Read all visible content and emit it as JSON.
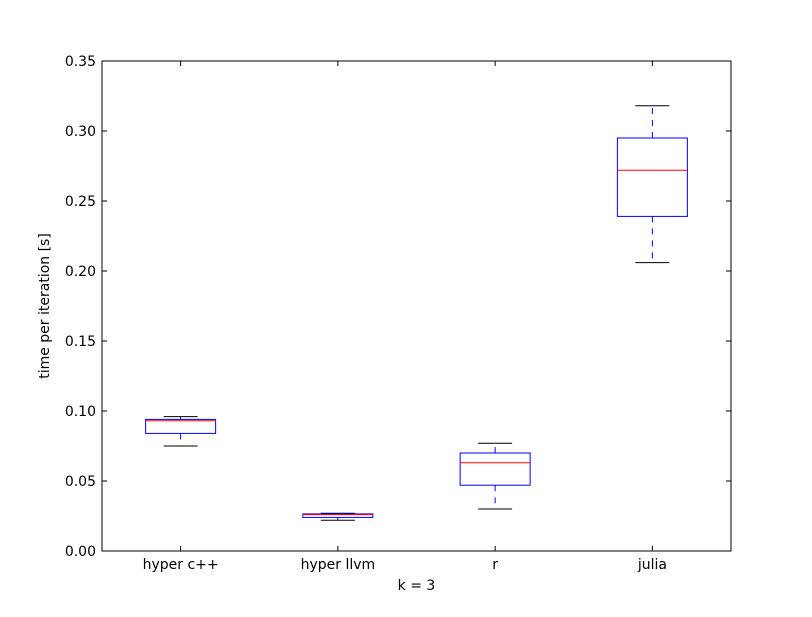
{
  "chart_data": {
    "type": "box",
    "xlabel": "k = 3",
    "ylabel": "time per iteration [s]",
    "ylim": [
      0.0,
      0.35
    ],
    "yticks": [
      0.0,
      0.05,
      0.1,
      0.15,
      0.2,
      0.25,
      0.3,
      0.35
    ],
    "ytick_labels": [
      "0.00",
      "0.05",
      "0.10",
      "0.15",
      "0.20",
      "0.25",
      "0.30",
      "0.35"
    ],
    "categories": [
      "hyper c++",
      "hyper llvm",
      "r",
      "julia"
    ],
    "boxes": [
      {
        "label": "hyper c++",
        "whisker_low": 0.075,
        "q1": 0.084,
        "median": 0.093,
        "q3": 0.094,
        "whisker_high": 0.096
      },
      {
        "label": "hyper llvm",
        "whisker_low": 0.022,
        "q1": 0.024,
        "median": 0.026,
        "q3": 0.0265,
        "whisker_high": 0.027
      },
      {
        "label": "r",
        "whisker_low": 0.03,
        "q1": 0.047,
        "median": 0.063,
        "q3": 0.07,
        "whisker_high": 0.077
      },
      {
        "label": "julia",
        "whisker_low": 0.206,
        "q1": 0.239,
        "median": 0.272,
        "q3": 0.295,
        "whisker_high": 0.318
      }
    ],
    "grid": false,
    "colors": {
      "box": "#0000ff",
      "median": "#ff0000",
      "whisker": "#0000ff",
      "cap": "#000000",
      "axes": "#000000"
    }
  }
}
